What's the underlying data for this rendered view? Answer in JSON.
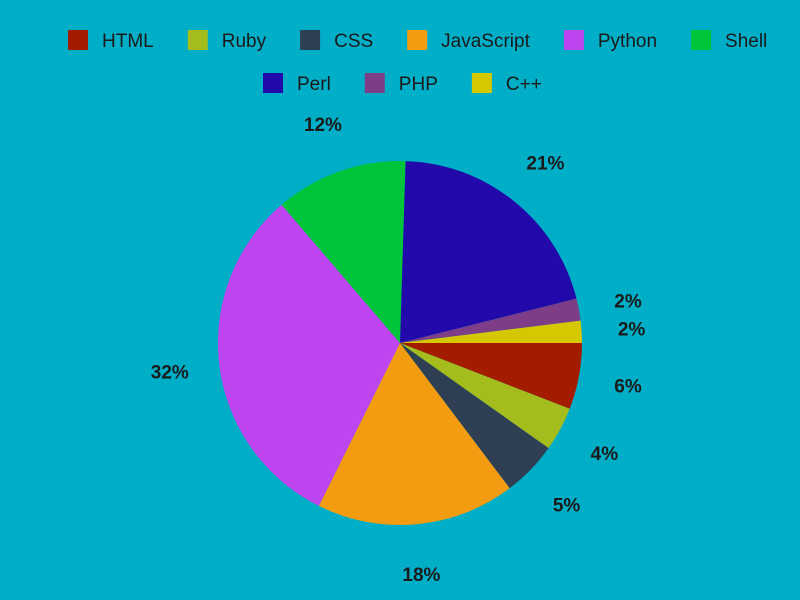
{
  "background": "#00aec7",
  "chart_data": {
    "type": "pie",
    "legend_placement": "top",
    "label_format": "percent",
    "categories": [
      "HTML",
      "Ruby",
      "CSS",
      "JavaScript",
      "Python",
      "Shell",
      "Perl",
      "PHP",
      "C++"
    ],
    "colors": [
      "#a31c00",
      "#a4bd1c",
      "#2e3f54",
      "#f39c12",
      "#bf45f1",
      "#00c43a",
      "#220aaa",
      "#7d3e87",
      "#d5c700"
    ],
    "values": [
      6,
      4,
      5,
      18,
      32,
      12,
      21,
      2,
      2
    ],
    "labels": [
      "6%",
      "4%",
      "5%",
      "18%",
      "32%",
      "12%",
      "21%",
      "2%",
      "2%"
    ]
  }
}
